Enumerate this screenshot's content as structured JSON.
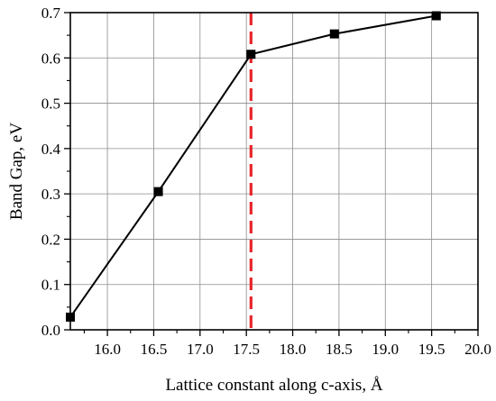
{
  "chart_data": {
    "type": "line",
    "xlabel": "Lattice constant along c-axis, Å",
    "ylabel": "Band Gap, eV",
    "xlim": [
      15.6,
      20.0
    ],
    "ylim": [
      0.0,
      0.7
    ],
    "xticks": [
      "16.0",
      "16.5",
      "17.0",
      "17.5",
      "18.0",
      "18.5",
      "19.0",
      "19.5",
      "20.0"
    ],
    "yticks": [
      "0.0",
      "0.1",
      "0.2",
      "0.3",
      "0.4",
      "0.5",
      "0.6",
      "0.7"
    ],
    "grid": true,
    "series": [
      {
        "x": [
          15.6,
          16.55,
          17.55,
          18.45,
          19.55
        ],
        "y": [
          0.028,
          0.305,
          0.608,
          0.653,
          0.693
        ],
        "color": "#000000",
        "marker": "square"
      }
    ],
    "reference_line": {
      "x": 17.55,
      "color": "#e8262b",
      "style": "dashed"
    }
  }
}
